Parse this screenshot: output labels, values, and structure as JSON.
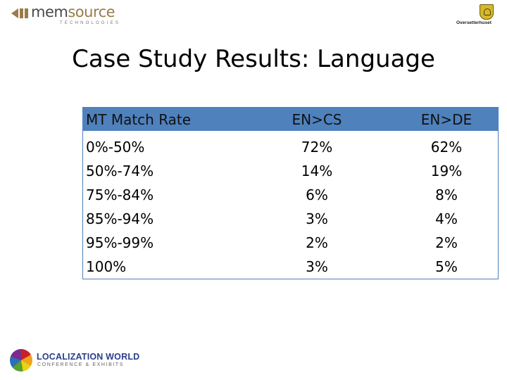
{
  "logos": {
    "memsource": {
      "word_prefix": "mem",
      "word_suffix": "source",
      "tagline": "TECHNOLOGIES"
    },
    "oversetterhuset": {
      "name": "Oversetterhuset"
    },
    "localization_world": {
      "name": "LOCALIZATION WORLD",
      "tagline": "CONFERENCE & EXHIBITS"
    }
  },
  "slide": {
    "title": "Case Study Results: Language"
  },
  "table": {
    "headers": [
      "MT Match Rate",
      "EN>CS",
      "EN>DE"
    ],
    "rows": [
      [
        "0%-50%",
        "72%",
        "62%"
      ],
      [
        "50%-74%",
        "14%",
        "19%"
      ],
      [
        "75%-84%",
        "6%",
        "8%"
      ],
      [
        "85%-94%",
        "3%",
        "4%"
      ],
      [
        "95%-99%",
        "2%",
        "2%"
      ],
      [
        "100%",
        "3%",
        "5%"
      ]
    ]
  },
  "colors": {
    "header_fill": "#4f81bd",
    "border": "#4f7fbd",
    "memsource_accent": "#9a7b4a"
  }
}
